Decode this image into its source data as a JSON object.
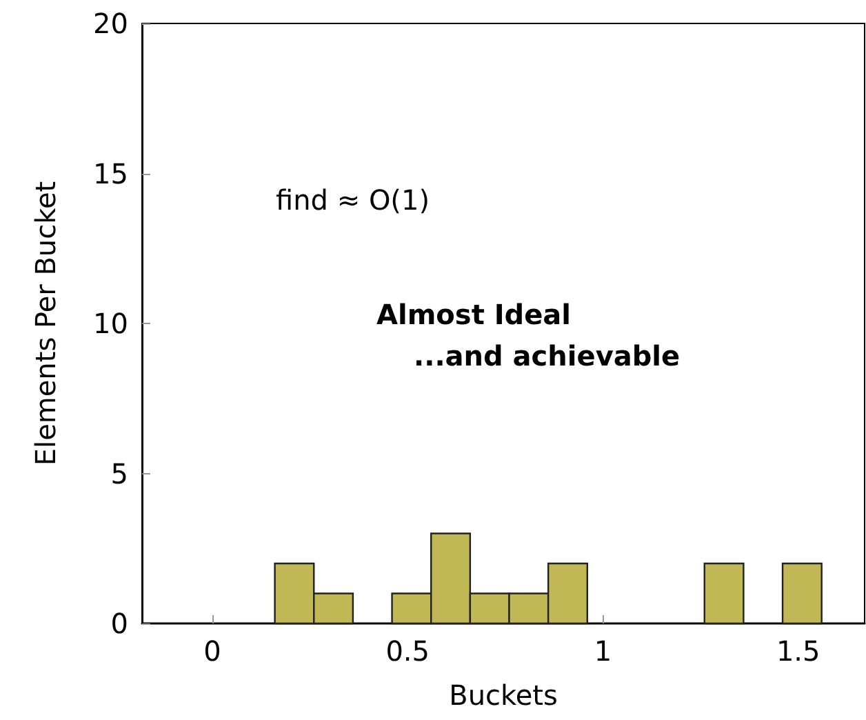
{
  "chart_data": {
    "type": "histogram",
    "xlabel": "Buckets",
    "ylabel": "Elements Per Bucket",
    "bins": [
      0.06,
      0.16,
      0.26,
      0.36,
      0.46,
      0.56,
      0.66,
      0.76,
      0.86,
      0.96,
      1.06,
      1.16,
      1.26,
      1.36,
      1.46,
      1.56
    ],
    "values": [
      0,
      2,
      1,
      0,
      1,
      3,
      1,
      1,
      2,
      0,
      0,
      0,
      2,
      0,
      2
    ],
    "color": "#c0b854",
    "xlim": [
      -0.18,
      1.67
    ],
    "xticks": [
      0,
      0.5,
      1,
      1.5
    ],
    "ylim": [
      0,
      20
    ],
    "yticks": [
      0,
      5,
      10,
      15,
      20
    ],
    "grid": false,
    "annotations": [
      "find ≈ O(1)",
      "Almost Ideal",
      "...and achievable"
    ]
  }
}
